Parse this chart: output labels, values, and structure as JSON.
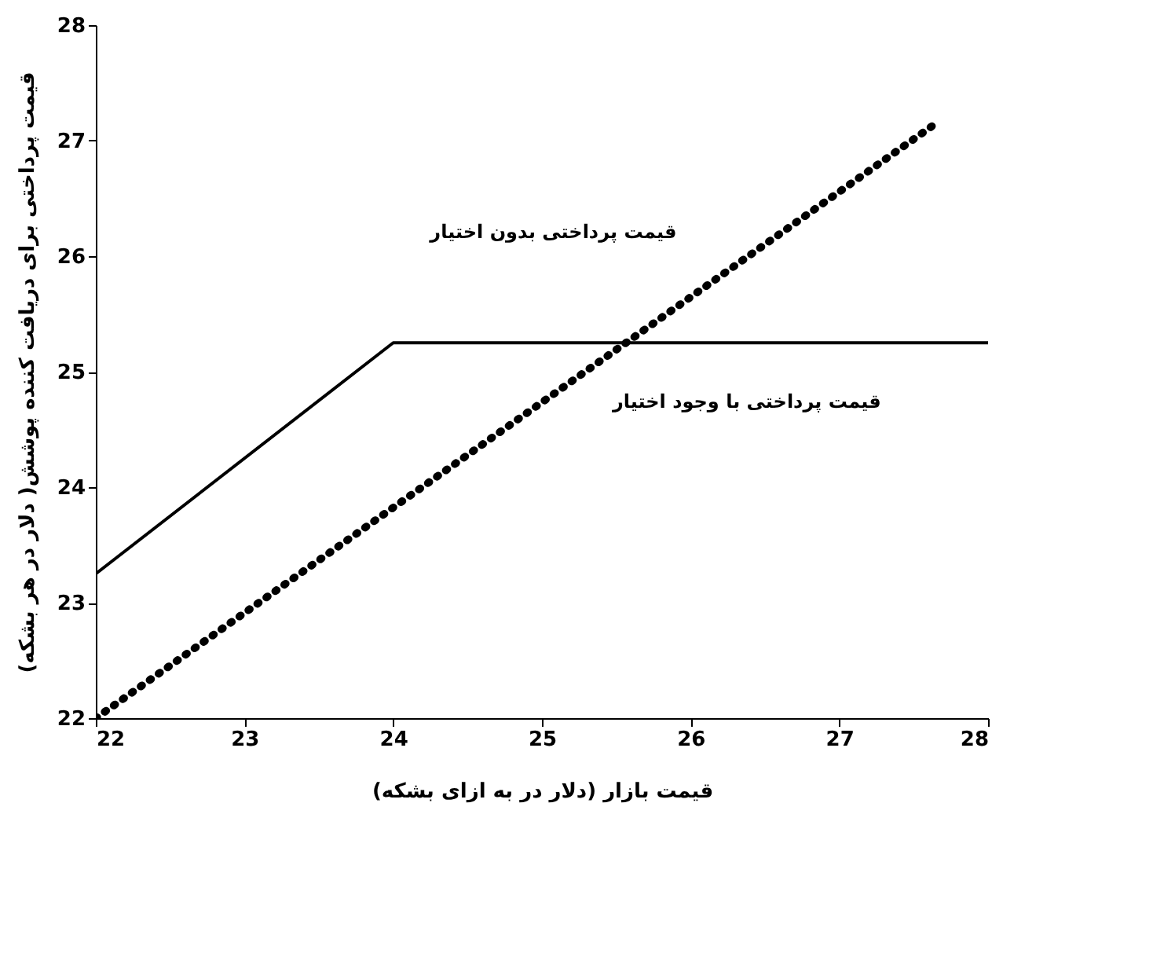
{
  "chart_data": {
    "type": "line",
    "xlabel": "قیمت بازار (دلار در به ازای بشکه)",
    "ylabel": "قیمت پرداختی برای دریافت کننده پوشش( دلار در هر بشکه)",
    "series": [
      {
        "color": "#000000",
        "line_style": "solid",
        "x": [
          22,
          24,
          28
        ],
        "values": [
          23.25,
          25.25,
          25.25
        ]
      },
      {
        "color": "#000000",
        "line_style": "dotted",
        "x": [
          22,
          27.65
        ],
        "values": [
          22,
          27.15
        ]
      }
    ],
    "annotations": [
      "قیمت پرداختی بدون اختیار",
      "قیمت پرداختی با وجود اختیار"
    ],
    "xlim": [
      22,
      28
    ],
    "ylim": [
      22,
      28
    ],
    "xticks": [
      22,
      23,
      24,
      25,
      26,
      27,
      28
    ],
    "yticks": [
      22,
      23,
      24,
      25,
      26,
      27,
      28
    ],
    "grid": false,
    "marker": "none"
  }
}
